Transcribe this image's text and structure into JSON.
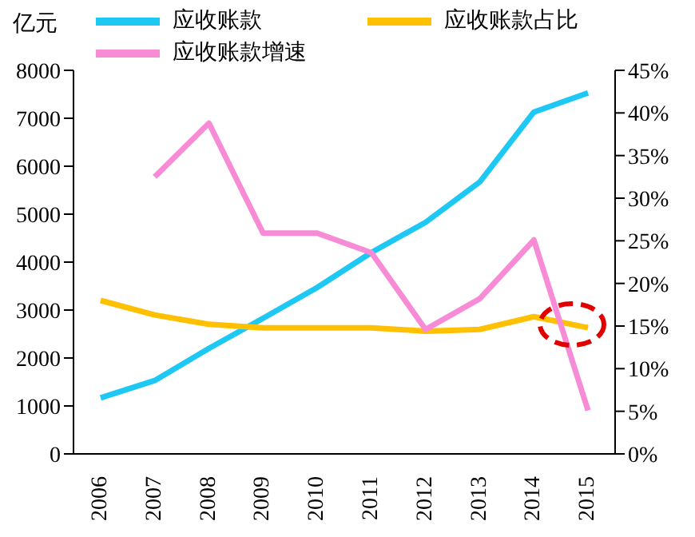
{
  "chart_data": {
    "type": "line",
    "ylabel": "亿元",
    "categories": [
      "2006",
      "2007",
      "2008",
      "2009",
      "2010",
      "2011",
      "2012",
      "2013",
      "2014",
      "2015"
    ],
    "series": [
      {
        "name": "应收账款",
        "color": "#1ec8f5",
        "values": [
          1170,
          1530,
          2200,
          2830,
          3470,
          4200,
          4830,
          5670,
          7130,
          7530
        ]
      },
      {
        "name": "应收账款占比",
        "color": "#ffc000",
        "axis": "y2",
        "values": [
          18.0,
          16.3,
          15.2,
          14.8,
          14.8,
          14.8,
          14.4,
          14.6,
          16.1,
          14.8
        ]
      },
      {
        "name": "应收账款增速",
        "color": "#f78bd6",
        "axis": "y2",
        "values": [
          null,
          32.5,
          38.8,
          25.9,
          25.9,
          23.6,
          14.6,
          18.2,
          25.1,
          5.1
        ]
      }
    ],
    "ylim": [
      0,
      8000
    ],
    "yticks": [
      0,
      1000,
      2000,
      3000,
      4000,
      5000,
      6000,
      7000,
      8000
    ],
    "y2lim": [
      0,
      45
    ],
    "y2ticks": [
      {
        "value": 0,
        "label": "0%"
      },
      {
        "value": 5,
        "label": "5%"
      },
      {
        "value": 10,
        "label": "10%"
      },
      {
        "value": 15,
        "label": "15%"
      },
      {
        "value": 20,
        "label": "20%"
      },
      {
        "value": 25,
        "label": "25%"
      },
      {
        "value": 30,
        "label": "30%"
      },
      {
        "value": 35,
        "label": "35%"
      },
      {
        "value": 40,
        "label": "40%"
      },
      {
        "value": 45,
        "label": "45%"
      }
    ],
    "legend": "top"
  }
}
